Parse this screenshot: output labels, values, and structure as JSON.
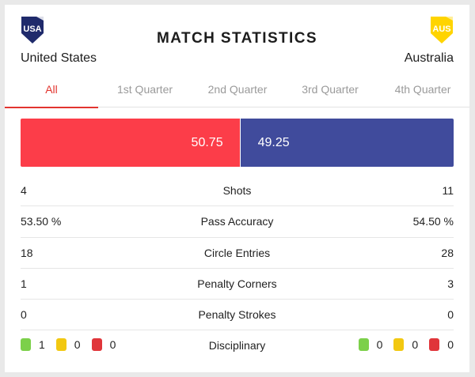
{
  "title": "MATCH STATISTICS",
  "home": {
    "code": "USA",
    "name": "United States",
    "shield_color": "#1f2a6b",
    "stripe_color": "#ffffff"
  },
  "away": {
    "code": "AUS",
    "name": "Australia",
    "shield_color": "#ffd400",
    "stripe_color": "#ffffff"
  },
  "tabs": [
    "All",
    "1st Quarter",
    "2nd Quarter",
    "3rd Quarter",
    "4th Quarter"
  ],
  "active_tab": "All",
  "possession": {
    "home": "50.75",
    "away": "49.25",
    "home_color": "#fc3d49",
    "away_color": "#404b9c"
  },
  "stats": [
    {
      "home": "4",
      "label": "Shots",
      "away": "11"
    },
    {
      "home": "53.50 %",
      "label": "Pass Accuracy",
      "away": "54.50 %"
    },
    {
      "home": "18",
      "label": "Circle Entries",
      "away": "28"
    },
    {
      "home": "1",
      "label": "Penalty Corners",
      "away": "3"
    },
    {
      "home": "0",
      "label": "Penalty Strokes",
      "away": "0"
    }
  ],
  "disciplinary": {
    "label": "Disciplinary",
    "home": {
      "green": "1",
      "yellow": "0",
      "red": "0"
    },
    "away": {
      "green": "0",
      "yellow": "0",
      "red": "0"
    },
    "colors": {
      "green": "#7cd04a",
      "yellow": "#f2c811",
      "red": "#e0353a"
    }
  }
}
